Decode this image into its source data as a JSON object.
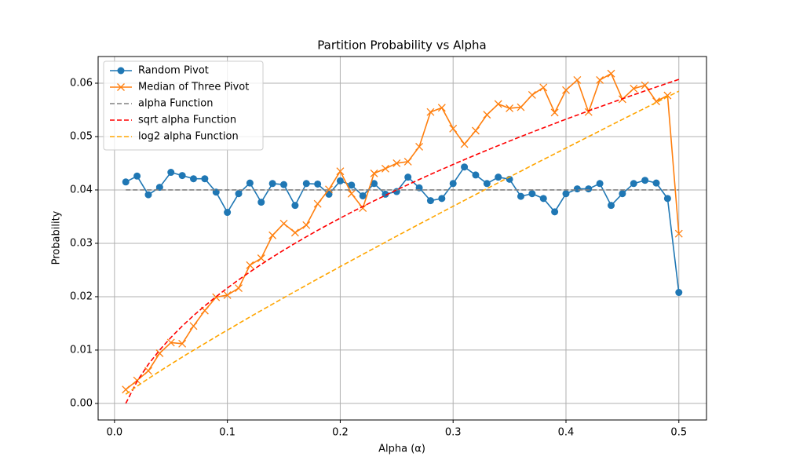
{
  "chart_data": {
    "type": "line",
    "title": "Partition Probability vs Alpha",
    "x_label": "Alpha (α)",
    "y_label": "Probability",
    "x": [
      0.01,
      0.02,
      0.03,
      0.04,
      0.05,
      0.06,
      0.07,
      0.08,
      0.09,
      0.1,
      0.11,
      0.12,
      0.13,
      0.14,
      0.15,
      0.16,
      0.17,
      0.18,
      0.19,
      0.2,
      0.21,
      0.22,
      0.23,
      0.24,
      0.25,
      0.26,
      0.27,
      0.28,
      0.29,
      0.3,
      0.31,
      0.32,
      0.33,
      0.34,
      0.35,
      0.36,
      0.37,
      0.38,
      0.39,
      0.4,
      0.41,
      0.42,
      0.43,
      0.44,
      0.45,
      0.46,
      0.47,
      0.48,
      0.49,
      0.5
    ],
    "series": [
      {
        "name": "Random Pivot",
        "color": "#1f77b4",
        "marker": "circle",
        "dashed": false,
        "values": [
          0.0415,
          0.0426,
          0.0391,
          0.0405,
          0.0433,
          0.0427,
          0.0421,
          0.0421,
          0.0396,
          0.0358,
          0.0393,
          0.0413,
          0.0377,
          0.0412,
          0.041,
          0.0371,
          0.0412,
          0.0411,
          0.0392,
          0.0417,
          0.0409,
          0.0389,
          0.0412,
          0.0392,
          0.0397,
          0.0424,
          0.0404,
          0.038,
          0.0384,
          0.0412,
          0.0443,
          0.0428,
          0.0412,
          0.0424,
          0.042,
          0.0388,
          0.0393,
          0.0384,
          0.0359,
          0.0393,
          0.0402,
          0.0402,
          0.0412,
          0.0371,
          0.0393,
          0.0412,
          0.0418,
          0.0413,
          0.0384,
          0.0208
        ]
      },
      {
        "name": "Median of Three Pivot",
        "color": "#ff7f0e",
        "marker": "x",
        "dashed": false,
        "values": [
          0.0026,
          0.0043,
          0.0061,
          0.0094,
          0.0114,
          0.0112,
          0.0145,
          0.0174,
          0.0199,
          0.0203,
          0.0216,
          0.0259,
          0.0272,
          0.0315,
          0.0337,
          0.032,
          0.0334,
          0.0374,
          0.0401,
          0.0435,
          0.0393,
          0.0366,
          0.0431,
          0.044,
          0.045,
          0.0453,
          0.0481,
          0.0546,
          0.0554,
          0.0515,
          0.0486,
          0.0511,
          0.0541,
          0.0561,
          0.0553,
          0.0555,
          0.0578,
          0.0592,
          0.0545,
          0.0587,
          0.0606,
          0.0546,
          0.0606,
          0.0618,
          0.057,
          0.059,
          0.0596,
          0.0566,
          0.0577,
          0.0318
        ]
      },
      {
        "name": "alpha Function",
        "color": "#808080",
        "marker": "none",
        "dashed": true,
        "values": [
          0.04,
          0.04,
          0.04,
          0.04,
          0.04,
          0.04,
          0.04,
          0.04,
          0.04,
          0.04,
          0.04,
          0.04,
          0.04,
          0.04,
          0.04,
          0.04,
          0.04,
          0.04,
          0.04,
          0.04,
          0.04,
          0.04,
          0.04,
          0.04,
          0.04,
          0.04,
          0.04,
          0.04,
          0.04,
          0.04,
          0.04,
          0.04,
          0.04,
          0.04,
          0.04,
          0.04,
          0.04,
          0.04,
          0.04,
          0.04,
          0.04,
          0.04,
          0.04,
          0.04,
          0.04,
          0.04,
          0.04,
          0.04,
          0.04,
          0.04
        ]
      },
      {
        "name": "sqrt alpha Function",
        "color": "#ff0000",
        "marker": "none",
        "dashed": true,
        "values": [
          0,
          0.00414,
          0.00732,
          0.01,
          0.01236,
          0.01449,
          0.01646,
          0.01828,
          0.02,
          0.02162,
          0.02317,
          0.02464,
          0.02606,
          0.02742,
          0.02873,
          0.03,
          0.03123,
          0.03243,
          0.03359,
          0.03472,
          0.03583,
          0.0369,
          0.03796,
          0.03899,
          0.04,
          0.04099,
          0.04196,
          0.04292,
          0.04385,
          0.04477,
          0.04568,
          0.04657,
          0.04745,
          0.04831,
          0.04916,
          0.05,
          0.05083,
          0.05164,
          0.05245,
          0.05325,
          0.05403,
          0.05481,
          0.05557,
          0.05633,
          0.05708,
          0.05782,
          0.05856,
          0.05928,
          0.06,
          0.06071
        ]
      },
      {
        "name": "log2 alpha Function",
        "color": "#ffa500",
        "marker": "none",
        "dashed": true,
        "values": [
          0.00173,
          0.00323,
          0.00465,
          0.00603,
          0.00736,
          0.00868,
          0.00997,
          0.01124,
          0.0125,
          0.01374,
          0.01497,
          0.0162,
          0.01741,
          0.0186,
          0.0198,
          0.02098,
          0.02215,
          0.02333,
          0.02448,
          0.02564,
          0.02679,
          0.02794,
          0.02907,
          0.03021,
          0.03135,
          0.03247,
          0.0336,
          0.03471,
          0.03583,
          0.03693,
          0.03804,
          0.03914,
          0.04025,
          0.04135,
          0.04244,
          0.04351,
          0.04461,
          0.0457,
          0.04676,
          0.04785,
          0.04891,
          0.05,
          0.05106,
          0.05215,
          0.05321,
          0.05427,
          0.05533,
          0.05639,
          0.05745,
          0.0585
        ]
      }
    ],
    "xlim": [
      -0.0145,
      0.5245
    ],
    "ylim": [
      -0.0031,
      0.065
    ],
    "xticks": [
      {
        "value": 0,
        "label": "0.0"
      },
      0.1,
      0.2,
      0.3,
      0.4,
      0.5
    ],
    "yticks": [
      {
        "value": 0,
        "label": "0.00"
      },
      0.01,
      0.02,
      0.03,
      0.04,
      0.05,
      0.06
    ],
    "grid": true,
    "legend": "upper-left"
  }
}
